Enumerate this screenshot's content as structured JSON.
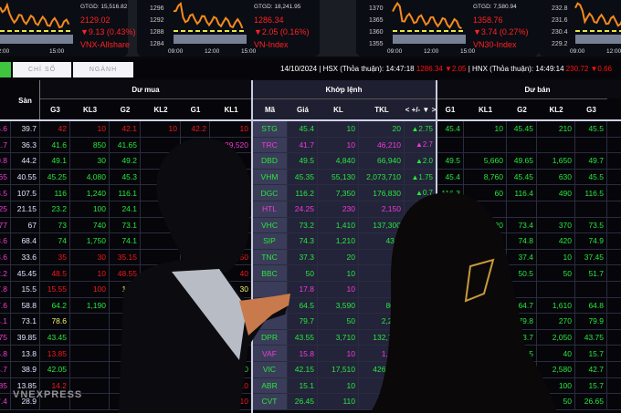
{
  "charts": [
    {
      "name": "VNX-Allshare",
      "value": "2129.02",
      "change": "▼9.13 (0.43%)",
      "gtgd": "GTGD: 15,516.82",
      "yticks": [],
      "xticks": [
        "12:00",
        "15:00"
      ]
    },
    {
      "name": "VN-Index",
      "value": "1286.34",
      "change": "▼2.05 (0.16%)",
      "gtgd": "GTGD: 18,241.95",
      "yticks": [
        "1296",
        "1292",
        "1288",
        "1284"
      ],
      "xticks": [
        "09:00",
        "12:00",
        "15:00"
      ]
    },
    {
      "name": "VN30-Index",
      "value": "1358.76",
      "change": "▼3.74 (0.27%)",
      "gtgd": "GTGD: 7,580.94",
      "yticks": [
        "1370",
        "1365",
        "1360",
        "1355"
      ],
      "xticks": [
        "09:00",
        "12:00",
        "15:00"
      ]
    },
    {
      "name": "",
      "value": "",
      "change": "",
      "gtgd": "",
      "yticks": [
        "232.8",
        "231.6",
        "230.4",
        "229.2"
      ],
      "xticks": [
        "09:00",
        "12:00",
        "15:00"
      ]
    }
  ],
  "tabs": [
    "CHỈ SỐ",
    "NGÀNH"
  ],
  "status": {
    "prefix": "14/10/2024 | HSX (Thỏa thuận): 14:47:18",
    "hsx_value": "1286.34",
    "hsx_change": "▼2.05",
    "mid": "| HNX (Thỏa thuận): 14:49:14",
    "hnx_value": "230.72",
    "hnx_change": "▼0.66"
  },
  "headers": {
    "san": "Sàn",
    "du_mua": "Dư mua",
    "khop_lenh": "Khớp lệnh",
    "du_ban": "Dư bán",
    "cols": [
      "G3",
      "KL3",
      "G2",
      "KL2",
      "G1",
      "KL1",
      "Mã",
      "Giá",
      "KL",
      "TKL",
      "< +/- ▼ >",
      "G1",
      "KL1",
      "G2",
      "KL2",
      "G3"
    ]
  },
  "colors": {
    "up": "#28e83a",
    "down": "#f21a1a",
    "ceiling": "#f03cd6",
    "ref": "#f0f070"
  },
  "rows": [
    {
      "c": "mwrrrrrrggggggggggg",
      "v": [
        "5.6",
        "39.7",
        "42",
        "10",
        "42.1",
        "10",
        "42.2",
        "10",
        "STG",
        "45.4",
        "10",
        "20",
        "▲2.75",
        "45.4",
        "10",
        "45.45",
        "210",
        "45.5",
        ""
      ]
    },
    {
      "c": "mwgggggmmmmmmm",
      "v": [
        "1.7",
        "36.3",
        "41.6",
        "850",
        "41.65",
        "",
        "",
        "29,520",
        "TRC",
        "41.7",
        "10",
        "46,210",
        "▲2.7",
        "",
        "",
        "",
        "",
        "",
        ""
      ]
    },
    {
      "c": "mwgggggggggggggggg",
      "v": [
        "0.8",
        "44.2",
        "49.1",
        "30",
        "49.2",
        "",
        "",
        "",
        "DBD",
        "49.5",
        "4,840",
        "66,940",
        "▲2.0",
        "49.5",
        "5,660",
        "49.65",
        "1,650",
        "49.7",
        ""
      ]
    },
    {
      "c": "mwgggggggggggggggg",
      "v": [
        ".65",
        "40.55",
        "45.25",
        "4,080",
        "45.3",
        "",
        "",
        "",
        "VHM",
        "45.35",
        "55,130",
        "2,073,710",
        "▲1.75",
        "45.4",
        "8,760",
        "45.45",
        "630",
        "45.5",
        ""
      ]
    },
    {
      "c": "mwgggggggggggggggg",
      "v": [
        "3.5",
        "107.5",
        "116",
        "1,240",
        "116.1",
        "",
        "",
        "",
        "DGC",
        "116.2",
        "7,350",
        "176,830",
        "▲0.7",
        "116.3",
        "60",
        "116.4",
        "490",
        "116.5",
        ""
      ]
    },
    {
      "c": "mwgggggmmmmmmm",
      "v": [
        ".25",
        "21.15",
        "23.2",
        "100",
        "24.1",
        "",
        "",
        "",
        "HTL",
        "24.25",
        "230",
        "2,150",
        "",
        "",
        "",
        "",
        "",
        "",
        ""
      ]
    },
    {
      "c": "mwgggggggggggggggg",
      "v": [
        ".77",
        "67",
        "73",
        "740",
        "73.1",
        "",
        "",
        "",
        "VHC",
        "73.2",
        "1,410",
        "137,300",
        "",
        "",
        "420",
        "73.4",
        "370",
        "73.5",
        ""
      ]
    },
    {
      "c": "mwgggggggggggggggg",
      "v": [
        "3.6",
        "68.4",
        "74",
        "1,750",
        "74.1",
        "",
        "",
        "",
        "SIP",
        "74.3",
        "1,210",
        "43,5",
        "",
        "",
        "80",
        "74.8",
        "420",
        "74.9",
        ""
      ]
    },
    {
      "c": "mwrrrrrrggggggggggg",
      "v": [
        "3.6",
        "33.6",
        "35",
        "30",
        "35.15",
        "",
        "",
        "50",
        "TNC",
        "37.3",
        "20",
        "",
        "",
        "",
        "150",
        "37.4",
        "10",
        "37.45",
        ""
      ]
    },
    {
      "c": "mwrrrrrrggggggggggg",
      "v": [
        "2.2",
        "45.45",
        "48.5",
        "10",
        "48.55",
        "",
        "",
        "40",
        "BBC",
        "50",
        "10",
        "",
        "",
        "",
        "10",
        "50.5",
        "50",
        "51.7",
        ""
      ]
    },
    {
      "c": "mwrryggymmmmmmmmmm",
      "v": [
        "7.8",
        "15.5",
        "15.55",
        "100",
        "16.6",
        "",
        "",
        "30",
        "",
        "17.8",
        "10",
        "",
        "",
        "",
        "10",
        "",
        "",
        "",
        ""
      ]
    },
    {
      "c": "mwgggggggggggggggg",
      "v": [
        "7.6",
        "58.8",
        "64.2",
        "1,190",
        "",
        "",
        "",
        "1,080",
        "",
        "64.5",
        "3,590",
        "86,9",
        "",
        "",
        "",
        "64.7",
        "1,610",
        "64.8",
        ""
      ]
    },
    {
      "c": "mwyggggggggggggggg",
      "v": [
        "4.1",
        "73.1",
        "78.6",
        "",
        "",
        "",
        "",
        "",
        "",
        "79.7",
        "50",
        "2,290",
        "",
        "",
        "",
        "79.8",
        "270",
        "79.9",
        ""
      ]
    },
    {
      "c": "mwgggggggggggggggg",
      "v": [
        ".75",
        "39.85",
        "43.45",
        "",
        "",
        "",
        "",
        "",
        "DPR",
        "43.55",
        "3,710",
        "132,780",
        "",
        "",
        "",
        "43.7",
        "2,050",
        "43.75",
        ""
      ]
    },
    {
      "c": "mwrrrrrrmmmmmmgggg",
      "v": [
        "5.8",
        "13.8",
        "13.85",
        "",
        "",
        "",
        "",
        "",
        "VAF",
        "15.8",
        "10",
        "1,010",
        "",
        "",
        "",
        "15.65",
        "40",
        "15.7",
        ""
      ]
    },
    {
      "c": "mwgggggggggggggggg",
      "v": [
        "4.7",
        "38.9",
        "42.05",
        "",
        "",
        "",
        "",
        "980",
        "VIC",
        "42.15",
        "17,510",
        "426,390",
        "",
        "",
        "",
        "",
        "2,580",
        "42.7",
        ""
      ]
    },
    {
      "c": "mwrrrrrrgggggggggg",
      "v": [
        ".85",
        "13.85",
        "14.2",
        "",
        "",
        "",
        "",
        "10",
        "ABR",
        "15.1",
        "10",
        "20",
        "",
        "",
        "",
        "",
        "100",
        "15.7",
        ""
      ]
    },
    {
      "c": "mwrrrrrrgggggggggg",
      "v": [
        "7.4",
        "28.9",
        "",
        "",
        "",
        "",
        "",
        "10",
        "CVT",
        "26.45",
        "110",
        "",
        "",
        "",
        "",
        "",
        "50",
        "26.65",
        ""
      ]
    }
  ],
  "watermark": "VNEXPRESS"
}
